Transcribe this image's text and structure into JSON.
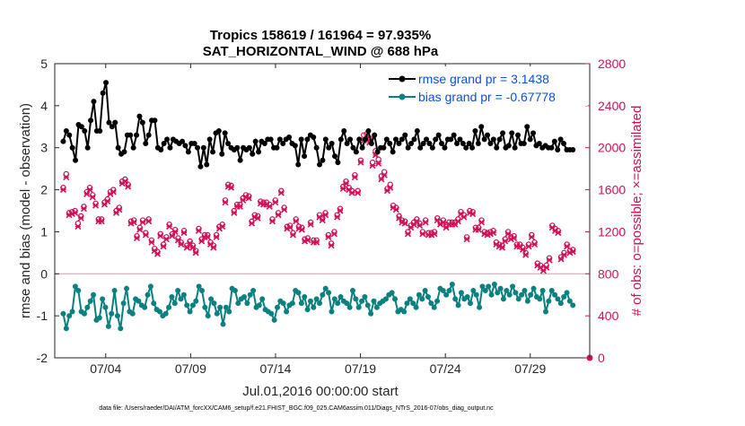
{
  "chart_data": {
    "type": "line",
    "title": "Tropics 158619 / 161964 = 97.935%",
    "subtitle": "SAT_HORIZONTAL_WIND @ 688 hPa",
    "xlabel": "Jul.01,2016 00:00:00 start",
    "ylabel_left": "rmse and bias (model - observation)",
    "ylabel_right": "# of obs: o=possible; ×=assimilated",
    "footer": "data file: /Users/raeder/DAI/ATM_forcXX/CAM6_setup/f.e21.FHIST_BGC.f09_025.CAM6assim.011/Diags_NTrS_2016-07/obs_diag_output.nc",
    "xlim": [
      0.5,
      32
    ],
    "ylim_left": [
      -2,
      5
    ],
    "ylim_right": [
      0,
      2800
    ],
    "x_ticks": [
      3.5,
      8.5,
      13.5,
      18.5,
      23.5,
      28.5
    ],
    "x_tick_labels": [
      "07/04",
      "07/09",
      "07/14",
      "07/19",
      "07/24",
      "07/29"
    ],
    "y_ticks_left": [
      -2,
      -1,
      0,
      1,
      2,
      3,
      4,
      5
    ],
    "y_ticks_right": [
      0,
      400,
      800,
      1200,
      1600,
      2000,
      2400,
      2800
    ],
    "colors": {
      "rmse": "#000000",
      "bias": "#0b8080",
      "obs": "#d0115a",
      "legend_text": "#0b50d8",
      "zero_line": "#c8a0a8"
    },
    "legend": [
      {
        "name": "rmse grand pr = 3.1438"
      },
      {
        "name": "bias grand pr = -0.67778"
      }
    ],
    "series": [
      {
        "name": "rmse",
        "values": [
          3.15,
          3.4,
          3.3,
          3.0,
          2.7,
          3.55,
          3.5,
          3.4,
          3.0,
          3.65,
          4.1,
          3.4,
          3.4,
          4.3,
          4.55,
          3.6,
          3.5,
          3.6,
          3.0,
          2.85,
          2.9,
          3.3,
          3.3,
          3.0,
          3.3,
          3.75,
          3.6,
          3.1,
          3.3,
          3.65,
          3.65,
          3.0,
          2.95,
          3.1,
          3.2,
          3.0,
          3.2,
          3.15,
          3.1,
          3.15,
          3.05,
          2.9,
          3.1,
          3.1,
          3.0,
          2.55,
          3.0,
          2.6,
          3.2,
          2.9,
          3.35,
          3.4,
          2.85,
          3.35,
          3.1,
          3.0,
          2.95,
          3.0,
          2.7,
          3.0,
          2.95,
          3.0,
          2.85,
          3.15,
          2.9,
          3.15,
          3.1,
          3.2,
          3.2,
          3.0,
          3.0,
          3.2,
          3.1,
          3.2,
          3.25,
          3.1,
          3.05,
          2.6,
          3.2,
          2.8,
          3.2,
          3.3,
          3.25,
          3.0,
          2.6,
          2.7,
          3.2,
          3.0,
          3.1,
          2.8,
          2.65,
          3.2,
          3.4,
          3.1,
          3.2,
          3.0,
          2.9,
          3.2,
          3.0,
          3.2,
          3.4,
          3.1,
          3.3,
          2.9,
          3.0,
          3.0,
          3.2,
          3.1,
          2.9,
          3.2,
          3.1,
          3.2,
          3.3,
          3.0,
          3.1,
          3.2,
          3.4,
          3.0,
          3.1,
          3.2,
          3.1,
          3.0,
          3.2,
          3.3,
          3.1,
          3.0,
          3.2,
          3.2,
          3.3,
          3.1,
          3.2,
          3.1,
          3.0,
          3.1,
          3.0,
          3.4,
          3.1,
          3.5,
          3.2,
          3.3,
          3.1,
          3.2,
          3.0,
          3.2,
          3.35,
          3.0,
          3.05,
          3.35,
          3.0,
          3.3,
          3.1,
          3.1,
          3.5,
          3.2,
          3.35,
          3.05,
          3.1,
          3.0,
          3.05,
          3.0,
          3.0,
          3.15,
          2.95,
          3.2,
          3.1,
          2.95,
          2.95,
          2.95
        ]
      },
      {
        "name": "bias",
        "values": [
          -0.95,
          -1.3,
          -1.0,
          -0.9,
          -0.3,
          -0.4,
          -0.9,
          -0.95,
          -0.8,
          -0.65,
          -0.5,
          -1.1,
          -1.05,
          -0.6,
          -0.8,
          -1.25,
          -0.95,
          -0.4,
          -1.0,
          -1.3,
          -0.7,
          -0.35,
          -0.9,
          -0.95,
          -0.6,
          -0.65,
          -0.75,
          -0.8,
          -0.5,
          -0.3,
          -0.7,
          -0.85,
          -0.9,
          -1.0,
          -0.95,
          -0.8,
          -0.55,
          -0.7,
          -0.4,
          -0.6,
          -0.5,
          -0.75,
          -0.9,
          -0.75,
          -0.65,
          -0.3,
          -0.4,
          -0.8,
          -1.0,
          -0.6,
          -0.7,
          -0.95,
          -0.8,
          -1.2,
          -0.8,
          -0.9,
          -0.35,
          -0.4,
          -0.7,
          -0.6,
          -0.55,
          -0.7,
          -0.5,
          -0.4,
          -0.8,
          -0.75,
          -0.6,
          -0.85,
          -0.9,
          -0.95,
          -1.1,
          -0.8,
          -0.65,
          -0.7,
          -0.9,
          -0.75,
          -0.7,
          -0.4,
          -0.45,
          -0.7,
          -0.55,
          -0.85,
          -0.65,
          -0.8,
          -0.6,
          -0.7,
          -0.5,
          -0.35,
          -0.45,
          -0.9,
          -0.6,
          -0.7,
          -0.55,
          -0.65,
          -0.7,
          -0.8,
          -0.4,
          -0.6,
          -0.8,
          -0.65,
          -0.55,
          -0.75,
          -0.95,
          -0.65,
          -0.8,
          -0.7,
          -0.65,
          -0.6,
          -0.5,
          -0.45,
          -0.6,
          -0.9,
          -0.85,
          -0.9,
          -0.7,
          -0.6,
          -0.7,
          -0.8,
          -0.5,
          -0.6,
          -0.4,
          -0.55,
          -0.7,
          -0.8,
          -0.65,
          -0.35,
          -0.4,
          -0.5,
          -0.4,
          -0.25,
          -0.6,
          -0.75,
          -0.45,
          -0.6,
          -0.55,
          -0.7,
          -0.4,
          -0.5,
          -0.8,
          -0.3,
          -0.4,
          -0.3,
          -0.5,
          -0.25,
          -0.45,
          -0.35,
          -0.6,
          -0.4,
          -0.5,
          -0.3,
          -0.45,
          -0.6,
          -0.5,
          -0.4,
          -0.65,
          -0.5,
          -0.35,
          -0.55,
          -0.6,
          -0.4,
          -0.9,
          -0.65,
          -0.4,
          -0.5,
          -0.6,
          -0.7,
          -0.55,
          -0.45,
          -0.65,
          -0.75
        ]
      },
      {
        "name": "obs_possible",
        "values": [
          1620,
          1750,
          1380,
          1390,
          1400,
          1280,
          1350,
          1440,
          1580,
          1620,
          1550,
          1470,
          1320,
          1320,
          1480,
          1510,
          1580,
          1600,
          1400,
          1430,
          1680,
          1700,
          1650,
          1300,
          1310,
          1160,
          1240,
          1310,
          1190,
          1320,
          1120,
          1040,
          1010,
          1180,
          1080,
          1150,
          1270,
          1180,
          1220,
          1140,
          1100,
          1210,
          1070,
          1110,
          1070,
          1020,
          1230,
          1130,
          1170,
          1170,
          1100,
          1070,
          1170,
          1250,
          1270,
          1500,
          1650,
          1640,
          1400,
          1460,
          1460,
          1520,
          1550,
          1540,
          1300,
          1360,
          1350,
          1490,
          1480,
          1480,
          1460,
          1320,
          1500,
          1380,
          1590,
          1430,
          1250,
          1260,
          1190,
          1320,
          1250,
          1240,
          1130,
          1140,
          1290,
          1120,
          1120,
          1360,
          1330,
          1380,
          1170,
          1090,
          1200,
          1360,
          1420,
          1630,
          1680,
          1620,
          1590,
          1740,
          1590,
          1880,
          2120,
          2130,
          2090,
          1860,
          1970,
          1890,
          1730,
          1770,
          1610,
          1650,
          1450,
          1430,
          1350,
          1310,
          1300,
          1200,
          1260,
          1290,
          1320,
          1280,
          1200,
          1310,
          1190,
          1190,
          1200,
          1330,
          1290,
          1310,
          1260,
          1290,
          1290,
          1290,
          1320,
          1390,
          1360,
          1150,
          1400,
          1390,
          1240,
          1240,
          1310,
          1200,
          1190,
          1200,
          1210,
          1100,
          1080,
          1070,
          1130,
          1200,
          1150,
          1160,
          1080,
          1080,
          1050,
          1000,
          1080,
          1170,
          1100,
          900,
          880,
          850,
          880,
          950,
          1260,
          1230,
          1210,
          960,
          1000,
          1080,
          1020,
          1030
        ]
      },
      {
        "name": "obs_assimilated",
        "values": [
          1600,
          1720,
          1360,
          1370,
          1380,
          1250,
          1330,
          1420,
          1560,
          1600,
          1530,
          1450,
          1300,
          1300,
          1460,
          1490,
          1560,
          1580,
          1380,
          1410,
          1660,
          1680,
          1630,
          1280,
          1290,
          1140,
          1220,
          1290,
          1170,
          1300,
          1100,
          1020,
          990,
          1160,
          1060,
          1130,
          1250,
          1160,
          1200,
          1120,
          1080,
          1190,
          1050,
          1090,
          1050,
          1000,
          1210,
          1110,
          1150,
          1150,
          1080,
          1050,
          1150,
          1230,
          1250,
          1480,
          1630,
          1620,
          1380,
          1440,
          1440,
          1500,
          1530,
          1520,
          1280,
          1340,
          1330,
          1470,
          1460,
          1460,
          1440,
          1300,
          1480,
          1360,
          1570,
          1410,
          1230,
          1240,
          1170,
          1300,
          1230,
          1220,
          1110,
          1120,
          1270,
          1100,
          1100,
          1340,
          1310,
          1360,
          1150,
          1070,
          1180,
          1340,
          1400,
          1610,
          1660,
          1600,
          1570,
          1720,
          1570,
          1860,
          2070,
          2080,
          2050,
          1830,
          1930,
          1850,
          1700,
          1740,
          1590,
          1620,
          1430,
          1410,
          1330,
          1290,
          1280,
          1180,
          1240,
          1270,
          1300,
          1260,
          1180,
          1290,
          1170,
          1170,
          1180,
          1310,
          1270,
          1290,
          1240,
          1270,
          1270,
          1270,
          1300,
          1370,
          1340,
          1130,
          1380,
          1370,
          1220,
          1220,
          1290,
          1180,
          1170,
          1180,
          1190,
          1080,
          1060,
          1050,
          1110,
          1180,
          1130,
          1140,
          1060,
          1060,
          1030,
          980,
          1060,
          1150,
          1080,
          880,
          860,
          830,
          860,
          930,
          1240,
          1210,
          1190,
          940,
          980,
          1060,
          1000,
          1010
        ]
      }
    ],
    "end_marker": {
      "x": 32,
      "y_right": 0
    }
  }
}
